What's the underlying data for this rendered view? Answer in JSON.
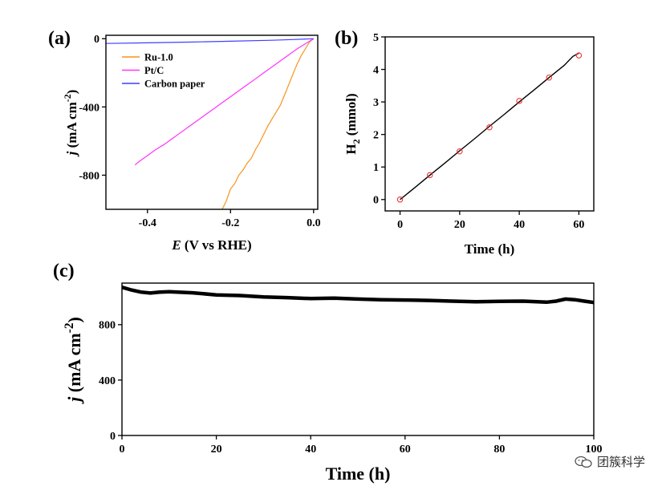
{
  "watermark": {
    "text": "团簇科学",
    "icon": "wechat-icon"
  },
  "chart_data": [
    {
      "panel_label": "(a)",
      "type": "line",
      "xlabel_italic": "E",
      "xlabel_rest": " (V vs RHE)",
      "ylabel_italic": "j",
      "ylabel_rest": " (mA cm",
      "ylabel_sup": "-2",
      "ylabel_end": ")",
      "xlim": [
        -0.5,
        0.01
      ],
      "ylim": [
        -1000,
        20
      ],
      "xticks": [
        -0.4,
        -0.2,
        0.0
      ],
      "xtick_labels": [
        "-0.4",
        "-0.2",
        "0.0"
      ],
      "yticks": [
        0,
        -400,
        -800
      ],
      "ytick_labels": [
        "0",
        "-400",
        "-800"
      ],
      "legend_position": "top-left",
      "series": [
        {
          "name": "Ru-1.0",
          "color": "#f7941d",
          "x": [
            0.0,
            -0.01,
            -0.02,
            -0.03,
            -0.04,
            -0.05,
            -0.06,
            -0.07,
            -0.08,
            -0.09,
            -0.1,
            -0.11,
            -0.12,
            -0.13,
            -0.14,
            -0.15,
            -0.16,
            -0.17,
            -0.18,
            -0.19,
            -0.2,
            -0.21,
            -0.22
          ],
          "y": [
            0,
            -20,
            -60,
            -100,
            -150,
            -210,
            -270,
            -330,
            -390,
            -430,
            -470,
            -510,
            -560,
            -610,
            -650,
            -700,
            -730,
            -770,
            -800,
            -850,
            -880,
            -950,
            -1000
          ]
        },
        {
          "name": "Pt/C",
          "color": "#ff33ff",
          "x": [
            0.0,
            -0.02,
            -0.04,
            -0.06,
            -0.08,
            -0.1,
            -0.12,
            -0.14,
            -0.16,
            -0.18,
            -0.2,
            -0.22,
            -0.24,
            -0.26,
            -0.28,
            -0.3,
            -0.32,
            -0.34,
            -0.36,
            -0.38,
            -0.4,
            -0.42,
            -0.43
          ],
          "y": [
            0,
            -30,
            -60,
            -95,
            -130,
            -165,
            -200,
            -235,
            -270,
            -305,
            -340,
            -375,
            -410,
            -445,
            -480,
            -515,
            -550,
            -585,
            -620,
            -650,
            -685,
            -720,
            -740
          ]
        },
        {
          "name": "Carbon paper",
          "color": "#3f3fff",
          "x": [
            0.0,
            -0.05,
            -0.1,
            -0.2,
            -0.3,
            -0.4,
            -0.5
          ],
          "y": [
            0,
            -5,
            -9,
            -15,
            -20,
            -24,
            -28
          ]
        }
      ]
    },
    {
      "panel_label": "(b)",
      "type": "line",
      "xlabel": "Time (h)",
      "ylabel_main": "H",
      "ylabel_sub": "2",
      "ylabel_rest": " (mmol)",
      "xlim": [
        -5,
        65
      ],
      "ylim": [
        -0.35,
        5
      ],
      "xticks": [
        0,
        20,
        40,
        60
      ],
      "xtick_labels": [
        "0",
        "20",
        "40",
        "60"
      ],
      "yticks": [
        0,
        1,
        2,
        3,
        4,
        5
      ],
      "ytick_labels": [
        "0",
        "1",
        "2",
        "3",
        "4",
        "5"
      ],
      "series": [
        {
          "color": "#000000",
          "x": [
            0,
            5,
            10,
            15,
            20,
            25,
            30,
            35,
            40,
            45,
            50,
            55,
            58,
            60
          ],
          "y": [
            0.0,
            0.37,
            0.75,
            1.12,
            1.5,
            1.87,
            2.25,
            2.62,
            3.0,
            3.37,
            3.75,
            4.12,
            4.4,
            4.5
          ]
        }
      ],
      "markers": {
        "color": "#ee3333",
        "x": [
          0,
          10,
          20,
          30,
          40,
          50,
          60
        ],
        "y": [
          0.0,
          0.75,
          1.48,
          2.22,
          3.03,
          3.75,
          4.43
        ]
      }
    },
    {
      "panel_label": "(c)",
      "type": "line",
      "xlabel": "Time (h)",
      "ylabel_italic": "j",
      "ylabel_rest": " (mA cm",
      "ylabel_sup": "-2",
      "ylabel_end": ")",
      "xlim": [
        0,
        100
      ],
      "ylim": [
        0,
        1100
      ],
      "xticks": [
        0,
        20,
        40,
        60,
        80,
        100
      ],
      "xtick_labels": [
        "0",
        "20",
        "40",
        "60",
        "80",
        "100"
      ],
      "yticks": [
        0,
        400,
        800
      ],
      "ytick_labels": [
        "0",
        "400",
        "800"
      ],
      "series": [
        {
          "color": "#000000",
          "x": [
            0,
            2,
            4,
            6,
            8,
            10,
            15,
            20,
            25,
            30,
            35,
            40,
            45,
            50,
            55,
            60,
            65,
            70,
            75,
            80,
            85,
            90,
            92,
            94,
            96,
            98,
            100
          ],
          "y": [
            1070,
            1050,
            1035,
            1028,
            1035,
            1038,
            1030,
            1015,
            1010,
            1000,
            995,
            988,
            992,
            985,
            980,
            978,
            975,
            970,
            965,
            968,
            970,
            962,
            970,
            985,
            980,
            970,
            960
          ]
        }
      ]
    }
  ]
}
